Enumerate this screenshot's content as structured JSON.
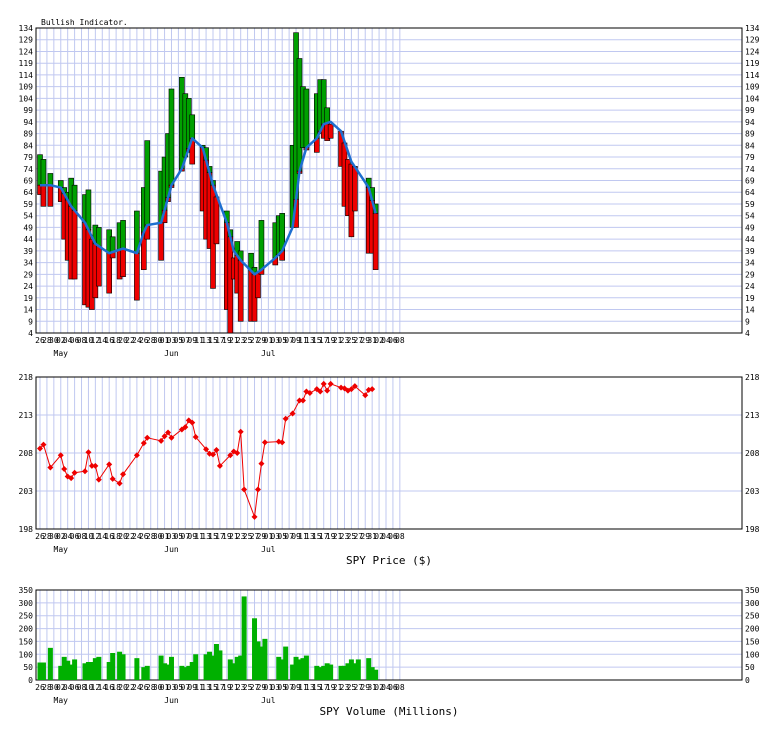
{
  "chart_data": [
    {
      "type": "bar",
      "title": "Bullish Indicator.",
      "yticks": [
        4,
        9,
        14,
        19,
        24,
        29,
        34,
        39,
        44,
        49,
        54,
        59,
        64,
        69,
        74,
        79,
        84,
        89,
        94,
        99,
        104,
        109,
        114,
        119,
        124,
        129,
        134
      ],
      "ylim": [
        4,
        134
      ],
      "x_tick_labels": [
        "26",
        "28",
        "30",
        "02",
        "04",
        "06",
        "08",
        "10",
        "12",
        "14",
        "16",
        "18",
        "20",
        "22",
        "24",
        "26",
        "28",
        "30",
        "01",
        "03",
        "05",
        "07",
        "09",
        "11",
        "13",
        "15",
        "17",
        "19",
        "21",
        "23",
        "25",
        "27",
        "29",
        "01",
        "03",
        "05",
        "07",
        "09",
        "11",
        "13",
        "15",
        "17",
        "19",
        "21",
        "23",
        "25",
        "27",
        "29",
        "31",
        "02",
        "04",
        "06",
        "08"
      ],
      "month_labels": [
        {
          "label": "May",
          "tick": 3
        },
        {
          "label": "Jun",
          "tick": 19
        },
        {
          "label": "Jul",
          "tick": 33
        }
      ],
      "colors": {
        "up": "#00a000",
        "down": "#ee0000",
        "ma": "#1e6fd0"
      },
      "bars": [
        {
          "d": 0,
          "low": 63,
          "high": 80
        },
        {
          "d": 1,
          "low": 58,
          "high": 78
        },
        {
          "d": 3,
          "low": 58,
          "high": 72
        },
        {
          "d": 6,
          "low": 60,
          "high": 69
        },
        {
          "d": 7,
          "low": 44,
          "high": 66
        },
        {
          "d": 8,
          "low": 35,
          "high": 64
        },
        {
          "d": 9,
          "low": 27,
          "high": 70
        },
        {
          "d": 10,
          "low": 27,
          "high": 67
        },
        {
          "d": 13,
          "low": 16,
          "high": 63
        },
        {
          "d": 14,
          "low": 15,
          "high": 65
        },
        {
          "d": 15,
          "low": 14,
          "high": 44
        },
        {
          "d": 16,
          "low": 19,
          "high": 50
        },
        {
          "d": 17,
          "low": 24,
          "high": 49
        },
        {
          "d": 20,
          "low": 21,
          "high": 48
        },
        {
          "d": 21,
          "low": 36,
          "high": 45
        },
        {
          "d": 23,
          "low": 27,
          "high": 51
        },
        {
          "d": 24,
          "low": 28,
          "high": 52
        },
        {
          "d": 28,
          "low": 18,
          "high": 56
        },
        {
          "d": 30,
          "low": 31,
          "high": 66
        },
        {
          "d": 31,
          "low": 44,
          "high": 86
        },
        {
          "d": 35,
          "low": 35,
          "high": 73
        },
        {
          "d": 36,
          "low": 51,
          "high": 79
        },
        {
          "d": 37,
          "low": 60,
          "high": 89
        },
        {
          "d": 38,
          "low": 66,
          "high": 108
        },
        {
          "d": 41,
          "low": 73,
          "high": 113
        },
        {
          "d": 42,
          "low": 79,
          "high": 106
        },
        {
          "d": 43,
          "low": 81,
          "high": 104
        },
        {
          "d": 44,
          "low": 76,
          "high": 97
        },
        {
          "d": 47,
          "low": 56,
          "high": 84
        },
        {
          "d": 48,
          "low": 44,
          "high": 83
        },
        {
          "d": 49,
          "low": 40,
          "high": 75
        },
        {
          "d": 50,
          "low": 23,
          "high": 69
        },
        {
          "d": 51,
          "low": 42,
          "high": 62
        },
        {
          "d": 54,
          "low": 14,
          "high": 56
        },
        {
          "d": 55,
          "low": 4,
          "high": 48
        },
        {
          "d": 56,
          "low": 27,
          "high": 36
        },
        {
          "d": 57,
          "low": 21,
          "high": 43
        },
        {
          "d": 58,
          "low": 9,
          "high": 39
        },
        {
          "d": 61,
          "low": 9,
          "high": 38
        },
        {
          "d": 62,
          "low": 9,
          "high": 32
        },
        {
          "d": 63,
          "low": 19,
          "high": 30
        },
        {
          "d": 64,
          "low": 29,
          "high": 52
        },
        {
          "d": 68,
          "low": 33,
          "high": 51
        },
        {
          "d": 69,
          "low": 37,
          "high": 54
        },
        {
          "d": 70,
          "low": 35,
          "high": 55
        },
        {
          "d": 73,
          "low": 49,
          "high": 84
        },
        {
          "d": 74,
          "low": 49,
          "high": 132
        },
        {
          "d": 75,
          "low": 72,
          "high": 121
        },
        {
          "d": 76,
          "low": 83,
          "high": 109
        },
        {
          "d": 77,
          "low": 82,
          "high": 108
        },
        {
          "d": 80,
          "low": 81,
          "high": 106
        },
        {
          "d": 81,
          "low": 89,
          "high": 112
        },
        {
          "d": 82,
          "low": 87,
          "high": 112
        },
        {
          "d": 83,
          "low": 86,
          "high": 100
        },
        {
          "d": 84,
          "low": 87,
          "high": 93
        },
        {
          "d": 87,
          "low": 75,
          "high": 90
        },
        {
          "d": 88,
          "low": 58,
          "high": 85
        },
        {
          "d": 89,
          "low": 54,
          "high": 78
        },
        {
          "d": 90,
          "low": 45,
          "high": 76
        },
        {
          "d": 91,
          "low": 56,
          "high": 75
        },
        {
          "d": 95,
          "low": 38,
          "high": 70
        },
        {
          "d": 96,
          "low": 38,
          "high": 66
        },
        {
          "d": 97,
          "low": 31,
          "high": 59
        }
      ],
      "moving_average": [
        {
          "d": 0,
          "v": 67
        },
        {
          "d": 3,
          "v": 67
        },
        {
          "d": 6,
          "v": 66
        },
        {
          "d": 9,
          "v": 58
        },
        {
          "d": 13,
          "v": 51
        },
        {
          "d": 16,
          "v": 42
        },
        {
          "d": 20,
          "v": 38
        },
        {
          "d": 24,
          "v": 40
        },
        {
          "d": 28,
          "v": 38
        },
        {
          "d": 30,
          "v": 47
        },
        {
          "d": 31,
          "v": 50
        },
        {
          "d": 35,
          "v": 51
        },
        {
          "d": 38,
          "v": 67
        },
        {
          "d": 41,
          "v": 74
        },
        {
          "d": 44,
          "v": 87
        },
        {
          "d": 47,
          "v": 83
        },
        {
          "d": 50,
          "v": 67
        },
        {
          "d": 54,
          "v": 51
        },
        {
          "d": 56,
          "v": 39
        },
        {
          "d": 58,
          "v": 35
        },
        {
          "d": 62,
          "v": 29
        },
        {
          "d": 64,
          "v": 31
        },
        {
          "d": 68,
          "v": 36
        },
        {
          "d": 70,
          "v": 39
        },
        {
          "d": 73,
          "v": 49
        },
        {
          "d": 74,
          "v": 61
        },
        {
          "d": 75,
          "v": 73
        },
        {
          "d": 77,
          "v": 83
        },
        {
          "d": 80,
          "v": 87
        },
        {
          "d": 82,
          "v": 93
        },
        {
          "d": 84,
          "v": 94
        },
        {
          "d": 87,
          "v": 90
        },
        {
          "d": 90,
          "v": 77
        },
        {
          "d": 95,
          "v": 66
        },
        {
          "d": 97,
          "v": 55
        }
      ]
    },
    {
      "type": "line",
      "xlabel": "SPY Price ($)",
      "yticks": [
        198,
        203,
        208,
        213,
        218
      ],
      "ylim": [
        198,
        218
      ],
      "x_tick_labels": [
        "26",
        "28",
        "30",
        "02",
        "04",
        "06",
        "08",
        "10",
        "12",
        "14",
        "16",
        "18",
        "20",
        "22",
        "24",
        "26",
        "28",
        "30",
        "01",
        "03",
        "05",
        "07",
        "09",
        "11",
        "13",
        "15",
        "17",
        "19",
        "21",
        "23",
        "25",
        "27",
        "29",
        "01",
        "03",
        "05",
        "07",
        "09",
        "11",
        "13",
        "15",
        "17",
        "19",
        "21",
        "23",
        "25",
        "27",
        "29",
        "31",
        "02",
        "04",
        "06",
        "08"
      ],
      "month_labels": [
        {
          "label": "May",
          "tick": 3
        },
        {
          "label": "Jun",
          "tick": 19
        },
        {
          "label": "Jul",
          "tick": 33
        }
      ],
      "color": "#ee0000",
      "points": [
        {
          "d": 0,
          "v": 208.6
        },
        {
          "d": 1,
          "v": 209.1
        },
        {
          "d": 3,
          "v": 206.1
        },
        {
          "d": 6,
          "v": 207.7
        },
        {
          "d": 7,
          "v": 205.9
        },
        {
          "d": 8,
          "v": 204.9
        },
        {
          "d": 9,
          "v": 204.7
        },
        {
          "d": 10,
          "v": 205.4
        },
        {
          "d": 13,
          "v": 205.6
        },
        {
          "d": 14,
          "v": 208.1
        },
        {
          "d": 15,
          "v": 206.3
        },
        {
          "d": 16,
          "v": 206.3
        },
        {
          "d": 17,
          "v": 204.5
        },
        {
          "d": 20,
          "v": 206.5
        },
        {
          "d": 21,
          "v": 204.6
        },
        {
          "d": 23,
          "v": 204.0
        },
        {
          "d": 24,
          "v": 205.2
        },
        {
          "d": 28,
          "v": 207.7
        },
        {
          "d": 30,
          "v": 209.3
        },
        {
          "d": 31,
          "v": 210.0
        },
        {
          "d": 35,
          "v": 209.6
        },
        {
          "d": 36,
          "v": 210.2
        },
        {
          "d": 37,
          "v": 210.7
        },
        {
          "d": 38,
          "v": 210.0
        },
        {
          "d": 41,
          "v": 211.1
        },
        {
          "d": 42,
          "v": 211.4
        },
        {
          "d": 43,
          "v": 212.3
        },
        {
          "d": 44,
          "v": 212.0
        },
        {
          "d": 45,
          "v": 210.1
        },
        {
          "d": 48,
          "v": 208.5
        },
        {
          "d": 49,
          "v": 207.9
        },
        {
          "d": 50,
          "v": 207.8
        },
        {
          "d": 51,
          "v": 208.4
        },
        {
          "d": 52,
          "v": 206.3
        },
        {
          "d": 55,
          "v": 207.7
        },
        {
          "d": 56,
          "v": 208.2
        },
        {
          "d": 57,
          "v": 208.0
        },
        {
          "d": 58,
          "v": 210.8
        },
        {
          "d": 59,
          "v": 203.2
        },
        {
          "d": 62,
          "v": 199.6
        },
        {
          "d": 63,
          "v": 203.2
        },
        {
          "d": 64,
          "v": 206.6
        },
        {
          "d": 65,
          "v": 209.4
        },
        {
          "d": 69,
          "v": 209.5
        },
        {
          "d": 70,
          "v": 209.4
        },
        {
          "d": 71,
          "v": 212.5
        },
        {
          "d": 73,
          "v": 213.2
        },
        {
          "d": 75,
          "v": 214.9
        },
        {
          "d": 76,
          "v": 214.9
        },
        {
          "d": 77,
          "v": 216.1
        },
        {
          "d": 78,
          "v": 215.9
        },
        {
          "d": 80,
          "v": 216.4
        },
        {
          "d": 81,
          "v": 216.1
        },
        {
          "d": 82,
          "v": 217.1
        },
        {
          "d": 83,
          "v": 216.2
        },
        {
          "d": 84,
          "v": 217.1
        },
        {
          "d": 87,
          "v": 216.6
        },
        {
          "d": 88,
          "v": 216.5
        },
        {
          "d": 89,
          "v": 216.2
        },
        {
          "d": 90,
          "v": 216.4
        },
        {
          "d": 91,
          "v": 216.8
        },
        {
          "d": 94,
          "v": 215.6
        },
        {
          "d": 95,
          "v": 216.3
        },
        {
          "d": 96,
          "v": 216.4
        }
      ]
    },
    {
      "type": "bar",
      "xlabel": "SPY Volume (Millions)",
      "yticks": [
        0,
        50,
        100,
        150,
        200,
        250,
        300,
        350
      ],
      "ylim": [
        0,
        350
      ],
      "x_tick_labels": [
        "26",
        "28",
        "30",
        "02",
        "04",
        "06",
        "08",
        "10",
        "12",
        "14",
        "16",
        "18",
        "20",
        "22",
        "24",
        "26",
        "28",
        "30",
        "01",
        "03",
        "05",
        "07",
        "09",
        "11",
        "13",
        "15",
        "17",
        "19",
        "21",
        "23",
        "25",
        "27",
        "29",
        "01",
        "03",
        "05",
        "07",
        "09",
        "11",
        "13",
        "15",
        "17",
        "19",
        "21",
        "23",
        "25",
        "27",
        "29",
        "31",
        "02",
        "04",
        "06",
        "08"
      ],
      "month_labels": [
        {
          "label": "May",
          "tick": 3
        },
        {
          "label": "Jun",
          "tick": 19
        },
        {
          "label": "Jul",
          "tick": 33
        }
      ],
      "color": "#00b000",
      "bars": [
        {
          "d": 0,
          "v": 68
        },
        {
          "d": 1,
          "v": 68
        },
        {
          "d": 3,
          "v": 125
        },
        {
          "d": 6,
          "v": 55
        },
        {
          "d": 7,
          "v": 90
        },
        {
          "d": 8,
          "v": 75
        },
        {
          "d": 9,
          "v": 60
        },
        {
          "d": 10,
          "v": 80
        },
        {
          "d": 13,
          "v": 65
        },
        {
          "d": 14,
          "v": 70
        },
        {
          "d": 15,
          "v": 70
        },
        {
          "d": 16,
          "v": 85
        },
        {
          "d": 17,
          "v": 90
        },
        {
          "d": 20,
          "v": 70
        },
        {
          "d": 21,
          "v": 105
        },
        {
          "d": 23,
          "v": 110
        },
        {
          "d": 24,
          "v": 100
        },
        {
          "d": 28,
          "v": 85
        },
        {
          "d": 30,
          "v": 50
        },
        {
          "d": 31,
          "v": 55
        },
        {
          "d": 35,
          "v": 95
        },
        {
          "d": 36,
          "v": 65
        },
        {
          "d": 37,
          "v": 60
        },
        {
          "d": 38,
          "v": 90
        },
        {
          "d": 41,
          "v": 55
        },
        {
          "d": 42,
          "v": 50
        },
        {
          "d": 43,
          "v": 55
        },
        {
          "d": 44,
          "v": 70
        },
        {
          "d": 45,
          "v": 100
        },
        {
          "d": 48,
          "v": 100
        },
        {
          "d": 49,
          "v": 110
        },
        {
          "d": 50,
          "v": 95
        },
        {
          "d": 51,
          "v": 140
        },
        {
          "d": 52,
          "v": 115
        },
        {
          "d": 55,
          "v": 80
        },
        {
          "d": 56,
          "v": 65
        },
        {
          "d": 57,
          "v": 90
        },
        {
          "d": 58,
          "v": 95
        },
        {
          "d": 59,
          "v": 325
        },
        {
          "d": 62,
          "v": 240
        },
        {
          "d": 63,
          "v": 150
        },
        {
          "d": 64,
          "v": 130
        },
        {
          "d": 65,
          "v": 160
        },
        {
          "d": 69,
          "v": 90
        },
        {
          "d": 70,
          "v": 80
        },
        {
          "d": 71,
          "v": 130
        },
        {
          "d": 73,
          "v": 60
        },
        {
          "d": 74,
          "v": 90
        },
        {
          "d": 75,
          "v": 80
        },
        {
          "d": 76,
          "v": 85
        },
        {
          "d": 77,
          "v": 95
        },
        {
          "d": 80,
          "v": 55
        },
        {
          "d": 81,
          "v": 50
        },
        {
          "d": 82,
          "v": 55
        },
        {
          "d": 83,
          "v": 65
        },
        {
          "d": 84,
          "v": 60
        },
        {
          "d": 87,
          "v": 55
        },
        {
          "d": 88,
          "v": 55
        },
        {
          "d": 89,
          "v": 65
        },
        {
          "d": 90,
          "v": 80
        },
        {
          "d": 91,
          "v": 65
        },
        {
          "d": 92,
          "v": 80
        },
        {
          "d": 95,
          "v": 85
        },
        {
          "d": 96,
          "v": 50
        },
        {
          "d": 97,
          "v": 40
        }
      ]
    }
  ]
}
